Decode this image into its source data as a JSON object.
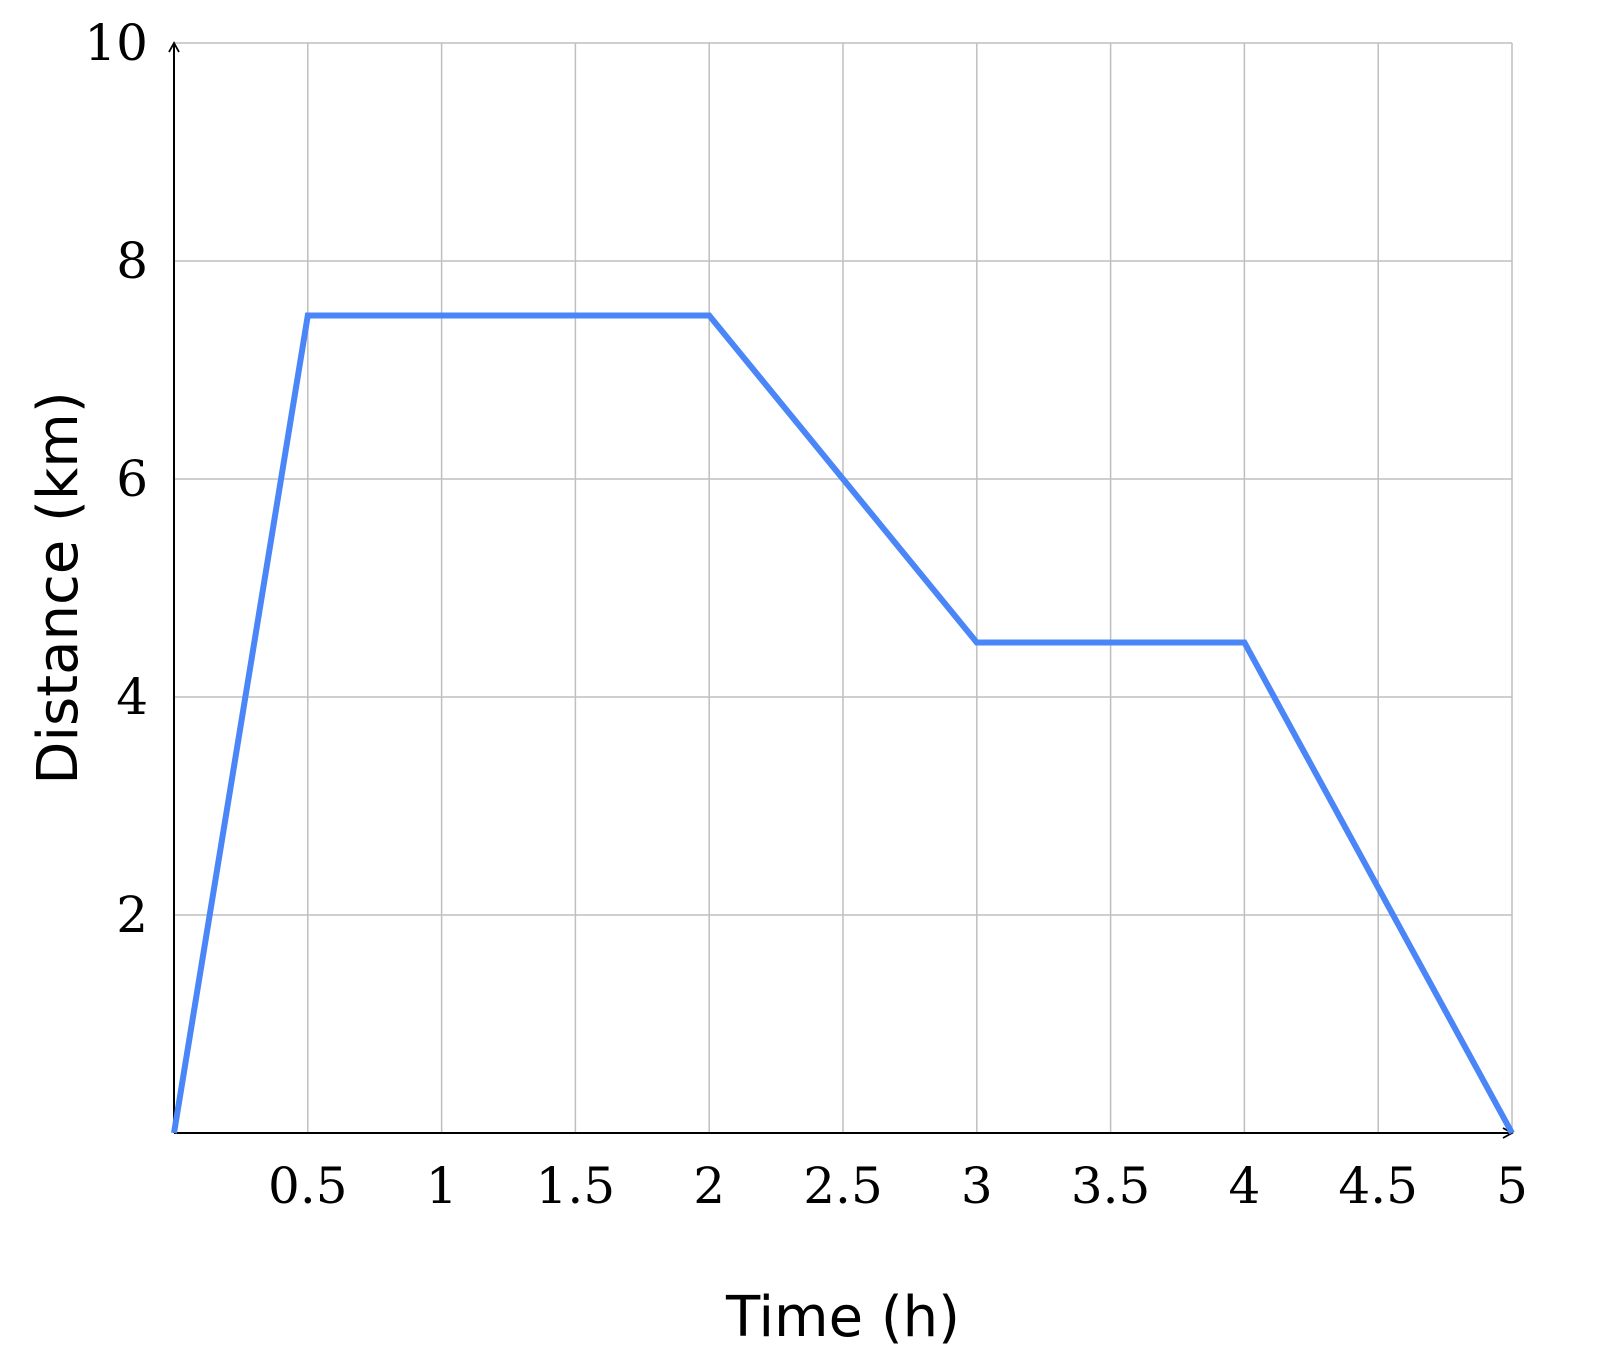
{
  "chart_data": {
    "type": "line",
    "title": "",
    "xlabel": "Time (h)",
    "ylabel": "Distance (km)",
    "xlim": [
      0,
      5
    ],
    "ylim": [
      0,
      10
    ],
    "x_ticks": [
      0.5,
      1,
      1.5,
      2,
      2.5,
      3,
      3.5,
      4,
      4.5,
      5
    ],
    "x_tick_labels": [
      "0.5",
      "1",
      "1.5",
      "2",
      "2.5",
      "3",
      "3.5",
      "4",
      "4.5",
      "5"
    ],
    "y_ticks": [
      2,
      4,
      6,
      8,
      10
    ],
    "y_tick_labels": [
      "2",
      "4",
      "6",
      "8",
      "10"
    ],
    "grid": true,
    "series": [
      {
        "color": "#4a86f7",
        "x": [
          0,
          0.5,
          2,
          3,
          4,
          5
        ],
        "y": [
          0,
          7.5,
          7.5,
          4.5,
          4.5,
          0
        ]
      }
    ],
    "colors": {
      "grid": "#bfbfbf",
      "axis": "#000000"
    }
  }
}
